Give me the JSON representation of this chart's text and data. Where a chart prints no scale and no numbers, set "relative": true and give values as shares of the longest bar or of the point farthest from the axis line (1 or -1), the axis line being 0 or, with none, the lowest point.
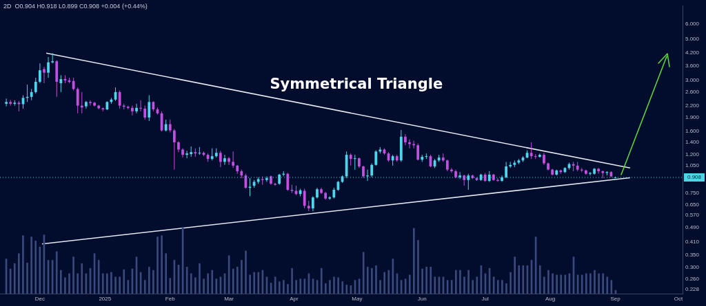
{
  "chart_data": [
    {
      "type": "candlestick",
      "subtitle": "2D  O0.904 H0.918 L0.899 C0.908 +0.004 (+0.44%)",
      "annotations": [
        "Symmetrical Triangle"
      ],
      "log": true,
      "xlim": [
        "2024-11-12",
        "2025-10-03"
      ],
      "xticks": [
        {
          "value": "2024-12-01",
          "label": "Dec"
        },
        {
          "value": "2025-01-01",
          "label": "2025"
        },
        {
          "value": "2025-02-01",
          "label": "Feb"
        },
        {
          "value": "2025-03-01",
          "label": "Mar"
        },
        {
          "value": "2025-04-01",
          "label": "Apr"
        },
        {
          "value": "2025-05-01",
          "label": "May"
        },
        {
          "value": "2025-06-01",
          "label": "Jun"
        },
        {
          "value": "2025-07-01",
          "label": "Jul"
        },
        {
          "value": "2025-08-01",
          "label": "Aug"
        },
        {
          "value": "2025-09-01",
          "label": "Sep"
        },
        {
          "value": "2025-10-01",
          "label": "Oct"
        }
      ],
      "ylim": [
        0.217,
        7.5
      ],
      "yticks": [
        {
          "value": 0.228,
          "label": "0.228"
        },
        {
          "value": 0.26,
          "label": "0.260"
        },
        {
          "value": 0.3,
          "label": "0.300"
        },
        {
          "value": 0.35,
          "label": "0.350"
        },
        {
          "value": 0.41,
          "label": "0.410"
        },
        {
          "value": 0.49,
          "label": "0.490"
        },
        {
          "value": 0.57,
          "label": "0.570"
        },
        {
          "value": 0.65,
          "label": "0.650"
        },
        {
          "value": 0.75,
          "label": "0.750"
        },
        {
          "value": 1.05,
          "label": "1.050"
        },
        {
          "value": 1.2,
          "label": "1.200"
        },
        {
          "value": 1.4,
          "label": "1.400"
        },
        {
          "value": 1.6,
          "label": "1.600"
        },
        {
          "value": 1.9,
          "label": "1.900"
        },
        {
          "value": 2.2,
          "label": "2.200"
        },
        {
          "value": 2.6,
          "label": "2.600"
        },
        {
          "value": 3,
          "label": "3.000"
        },
        {
          "value": 3.6,
          "label": "3.600"
        },
        {
          "value": 4.2,
          "label": "4.200"
        },
        {
          "value": 5,
          "label": "5.000"
        },
        {
          "value": 6,
          "label": "6.000"
        }
      ],
      "ref_lines": [
        {
          "axis": "y",
          "value": 0.908,
          "label": "0.908",
          "color": "#4fd6e6"
        }
      ],
      "x": [
        "2024-11-15",
        "2024-11-17",
        "2024-11-19",
        "2024-11-21",
        "2024-11-23",
        "2024-11-25",
        "2024-11-27",
        "2024-11-29",
        "2024-12-01",
        "2024-12-03",
        "2024-12-05",
        "2024-12-07",
        "2024-12-09",
        "2024-12-11",
        "2024-12-13",
        "2024-12-15",
        "2024-12-17",
        "2024-12-19",
        "2024-12-21",
        "2024-12-23",
        "2024-12-25",
        "2024-12-27",
        "2024-12-29",
        "2024-12-31",
        "2025-01-02",
        "2025-01-04",
        "2025-01-06",
        "2025-01-08",
        "2025-01-10",
        "2025-01-12",
        "2025-01-14",
        "2025-01-16",
        "2025-01-18",
        "2025-01-20",
        "2025-01-22",
        "2025-01-24",
        "2025-01-26",
        "2025-01-28",
        "2025-01-30",
        "2025-02-01",
        "2025-02-03",
        "2025-02-05",
        "2025-02-07",
        "2025-02-09",
        "2025-02-11",
        "2025-02-13",
        "2025-02-15",
        "2025-02-17",
        "2025-02-19",
        "2025-02-21",
        "2025-02-23",
        "2025-02-25",
        "2025-02-27",
        "2025-03-01",
        "2025-03-03",
        "2025-03-05",
        "2025-03-07",
        "2025-03-09",
        "2025-03-11",
        "2025-03-13",
        "2025-03-15",
        "2025-03-17",
        "2025-03-19",
        "2025-03-21",
        "2025-03-23",
        "2025-03-25",
        "2025-03-27",
        "2025-03-29",
        "2025-03-31",
        "2025-04-02",
        "2025-04-04",
        "2025-04-06",
        "2025-04-08",
        "2025-04-10",
        "2025-04-12",
        "2025-04-14",
        "2025-04-16",
        "2025-04-18",
        "2025-04-20",
        "2025-04-22",
        "2025-04-24",
        "2025-04-26",
        "2025-04-28",
        "2025-04-30",
        "2025-05-02",
        "2025-05-04",
        "2025-05-06",
        "2025-05-08",
        "2025-05-10",
        "2025-05-12",
        "2025-05-14",
        "2025-05-16",
        "2025-05-18",
        "2025-05-20",
        "2025-05-22",
        "2025-05-24",
        "2025-05-26",
        "2025-05-28",
        "2025-05-30",
        "2025-06-01",
        "2025-06-03",
        "2025-06-05",
        "2025-06-07",
        "2025-06-09",
        "2025-06-11",
        "2025-06-13",
        "2025-06-15",
        "2025-06-17",
        "2025-06-19",
        "2025-06-21",
        "2025-06-23",
        "2025-06-25",
        "2025-06-27",
        "2025-06-29",
        "2025-07-01",
        "2025-07-03",
        "2025-07-05",
        "2025-07-07",
        "2025-07-09",
        "2025-07-11",
        "2025-07-13",
        "2025-07-15",
        "2025-07-17",
        "2025-07-19",
        "2025-07-21",
        "2025-07-23",
        "2025-07-25",
        "2025-07-27",
        "2025-07-29",
        "2025-07-31",
        "2025-08-02",
        "2025-08-04",
        "2025-08-06",
        "2025-08-08",
        "2025-08-10",
        "2025-08-12",
        "2025-08-14",
        "2025-08-16",
        "2025-08-18",
        "2025-08-20",
        "2025-08-22",
        "2025-08-24",
        "2025-08-26",
        "2025-08-28",
        "2025-08-30",
        "2025-09-01"
      ],
      "ohlc": [
        [
          2.25,
          2.4,
          2.18,
          2.3
        ],
        [
          2.3,
          2.36,
          2.2,
          2.25
        ],
        [
          2.25,
          2.35,
          2.2,
          2.28
        ],
        [
          2.28,
          2.33,
          2.05,
          2.24
        ],
        [
          2.24,
          2.5,
          2.12,
          2.42
        ],
        [
          2.42,
          2.85,
          2.3,
          2.45
        ],
        [
          2.45,
          2.7,
          2.35,
          2.6
        ],
        [
          2.6,
          3.1,
          2.55,
          2.95
        ],
        [
          2.95,
          3.7,
          2.9,
          3.4
        ],
        [
          3.45,
          3.55,
          2.9,
          3.3
        ],
        [
          3.3,
          4.0,
          3.1,
          3.75
        ],
        [
          3.75,
          4.2,
          3.7,
          3.8
        ],
        [
          3.8,
          3.85,
          2.45,
          2.95
        ],
        [
          2.9,
          3.2,
          2.6,
          3.05
        ],
        [
          3.05,
          3.2,
          2.9,
          3.0
        ],
        [
          3.0,
          3.1,
          2.9,
          2.95
        ],
        [
          2.98,
          3.1,
          2.65,
          2.7
        ],
        [
          2.7,
          2.75,
          2.0,
          2.2
        ],
        [
          2.2,
          2.6,
          2.0,
          2.15
        ],
        [
          2.18,
          2.33,
          2.12,
          2.3
        ],
        [
          2.3,
          2.35,
          2.2,
          2.27
        ],
        [
          2.28,
          2.3,
          2.18,
          2.2
        ],
        [
          2.2,
          2.22,
          2.1,
          2.13
        ],
        [
          2.13,
          2.15,
          2.05,
          2.1
        ],
        [
          2.1,
          2.32,
          2.08,
          2.3
        ],
        [
          2.3,
          2.42,
          2.25,
          2.37
        ],
        [
          2.37,
          2.75,
          2.33,
          2.6
        ],
        [
          2.6,
          2.65,
          2.12,
          2.2
        ],
        [
          2.2,
          2.25,
          2.1,
          2.17
        ],
        [
          2.17,
          2.2,
          2.1,
          2.14
        ],
        [
          2.14,
          2.2,
          1.95,
          2.05
        ],
        [
          2.05,
          2.25,
          2.0,
          2.14
        ],
        [
          2.14,
          2.35,
          2.05,
          2.12
        ],
        [
          2.12,
          2.2,
          1.85,
          1.9
        ],
        [
          1.9,
          2.5,
          1.82,
          2.3
        ],
        [
          2.3,
          2.32,
          2.05,
          2.1
        ],
        [
          2.1,
          2.15,
          1.97,
          2.0
        ],
        [
          2.0,
          2.05,
          1.6,
          1.62
        ],
        [
          1.62,
          1.85,
          1.6,
          1.75
        ],
        [
          1.75,
          1.85,
          1.58,
          1.62
        ],
        [
          1.62,
          1.65,
          1.0,
          1.4
        ],
        [
          1.4,
          1.42,
          1.24,
          1.28
        ],
        [
          1.28,
          1.3,
          1.16,
          1.2
        ],
        [
          1.2,
          1.26,
          1.15,
          1.22
        ],
        [
          1.21,
          1.33,
          1.17,
          1.24
        ],
        [
          1.24,
          1.3,
          1.17,
          1.22
        ],
        [
          1.22,
          1.32,
          1.2,
          1.23
        ],
        [
          1.23,
          1.25,
          1.18,
          1.2
        ],
        [
          1.2,
          1.22,
          1.1,
          1.14
        ],
        [
          1.14,
          1.3,
          1.12,
          1.18
        ],
        [
          1.18,
          1.3,
          1.16,
          1.23
        ],
        [
          1.23,
          1.26,
          1.03,
          1.1
        ],
        [
          1.1,
          1.2,
          1.06,
          1.15
        ],
        [
          1.15,
          1.17,
          1.06,
          1.1
        ],
        [
          1.1,
          1.25,
          1.02,
          1.05
        ],
        [
          1.05,
          1.06,
          0.95,
          0.98
        ],
        [
          0.98,
          1.0,
          0.9,
          0.93
        ],
        [
          0.93,
          0.95,
          0.79,
          0.8
        ],
        [
          0.8,
          0.9,
          0.72,
          0.81
        ],
        [
          0.82,
          0.88,
          0.8,
          0.86
        ],
        [
          0.86,
          0.91,
          0.84,
          0.89
        ],
        [
          0.89,
          0.92,
          0.83,
          0.88
        ],
        [
          0.88,
          0.92,
          0.86,
          0.9
        ],
        [
          0.92,
          0.93,
          0.83,
          0.84
        ],
        [
          0.84,
          0.85,
          0.82,
          0.83
        ],
        [
          0.84,
          0.95,
          0.83,
          0.94
        ],
        [
          0.94,
          0.98,
          0.92,
          0.95
        ],
        [
          0.95,
          0.96,
          0.77,
          0.78
        ],
        [
          0.78,
          0.83,
          0.75,
          0.77
        ],
        [
          0.77,
          0.82,
          0.73,
          0.74
        ],
        [
          0.74,
          0.79,
          0.72,
          0.775
        ],
        [
          0.77,
          0.79,
          0.62,
          0.64
        ],
        [
          0.64,
          0.68,
          0.6,
          0.62
        ],
        [
          0.62,
          0.72,
          0.6,
          0.71
        ],
        [
          0.71,
          0.8,
          0.7,
          0.785
        ],
        [
          0.785,
          0.8,
          0.74,
          0.75
        ],
        [
          0.75,
          0.76,
          0.69,
          0.7
        ],
        [
          0.7,
          0.72,
          0.69,
          0.71
        ],
        [
          0.71,
          0.8,
          0.7,
          0.78
        ],
        [
          0.78,
          0.87,
          0.77,
          0.86
        ],
        [
          0.86,
          0.93,
          0.85,
          0.92
        ],
        [
          0.92,
          1.25,
          0.9,
          1.2
        ],
        [
          1.2,
          1.22,
          1.05,
          1.14
        ],
        [
          1.14,
          1.2,
          1.0,
          1.15
        ],
        [
          1.15,
          1.16,
          1.02,
          1.04
        ],
        [
          1.04,
          1.05,
          0.9,
          0.92
        ],
        [
          0.92,
          1.0,
          0.87,
          0.93
        ],
        [
          0.93,
          1.08,
          0.91,
          1.06
        ],
        [
          1.06,
          1.27,
          1.05,
          1.25
        ],
        [
          1.25,
          1.32,
          1.22,
          1.28
        ],
        [
          1.28,
          1.3,
          1.2,
          1.22
        ],
        [
          1.22,
          1.24,
          1.1,
          1.12
        ],
        [
          1.12,
          1.2,
          1.05,
          1.18
        ],
        [
          1.18,
          1.2,
          1.1,
          1.12
        ],
        [
          1.12,
          1.63,
          1.1,
          1.5
        ],
        [
          1.5,
          1.55,
          1.35,
          1.4
        ],
        [
          1.4,
          1.45,
          1.3,
          1.37
        ],
        [
          1.37,
          1.43,
          1.3,
          1.35
        ],
        [
          1.35,
          1.38,
          1.12,
          1.13
        ],
        [
          1.13,
          1.2,
          1.1,
          1.17
        ],
        [
          1.17,
          1.22,
          1.14,
          1.18
        ],
        [
          1.18,
          1.2,
          1.03,
          1.04
        ],
        [
          1.04,
          1.14,
          1.02,
          1.12
        ],
        [
          1.12,
          1.2,
          1.1,
          1.16
        ],
        [
          1.16,
          1.22,
          1.1,
          1.12
        ],
        [
          1.12,
          1.13,
          0.98,
          1.0
        ],
        [
          1.0,
          1.02,
          0.96,
          0.98
        ],
        [
          0.98,
          1.0,
          0.9,
          0.91
        ],
        [
          0.91,
          0.97,
          0.89,
          0.93
        ],
        [
          0.93,
          0.94,
          0.82,
          0.88
        ],
        [
          0.88,
          0.95,
          0.78,
          0.93
        ],
        [
          0.93,
          0.94,
          0.89,
          0.9
        ],
        [
          0.9,
          0.91,
          0.87,
          0.88
        ],
        [
          0.88,
          0.95,
          0.87,
          0.94
        ],
        [
          0.94,
          0.96,
          0.86,
          0.87
        ],
        [
          0.87,
          0.98,
          0.86,
          0.94
        ],
        [
          0.94,
          0.95,
          0.87,
          0.88
        ],
        [
          0.88,
          0.9,
          0.86,
          0.87
        ],
        [
          0.87,
          0.93,
          0.86,
          0.91
        ],
        [
          0.91,
          1.1,
          0.9,
          1.04
        ],
        [
          1.04,
          1.1,
          1.02,
          1.06
        ],
        [
          1.06,
          1.12,
          1.03,
          1.09
        ],
        [
          1.09,
          1.14,
          1.07,
          1.12
        ],
        [
          1.12,
          1.18,
          1.1,
          1.16
        ],
        [
          1.16,
          1.27,
          1.15,
          1.23
        ],
        [
          1.23,
          1.4,
          1.14,
          1.18
        ],
        [
          1.18,
          1.21,
          1.14,
          1.17
        ],
        [
          1.17,
          1.22,
          1.16,
          1.2
        ],
        [
          1.2,
          1.23,
          1.06,
          1.08
        ],
        [
          1.08,
          1.09,
          0.99,
          1.0
        ],
        [
          1.0,
          1.01,
          0.93,
          0.94
        ],
        [
          0.94,
          1.0,
          0.93,
          0.99
        ],
        [
          0.99,
          1.0,
          0.95,
          0.97
        ],
        [
          0.97,
          1.03,
          0.96,
          1.02
        ],
        [
          1.02,
          1.09,
          1.0,
          1.07
        ],
        [
          1.07,
          1.1,
          0.98,
          1.05
        ],
        [
          1.05,
          1.1,
          0.98,
          1.0
        ],
        [
          1.0,
          1.02,
          0.97,
          0.99
        ],
        [
          0.99,
          1.0,
          0.94,
          0.95
        ],
        [
          0.95,
          0.97,
          0.93,
          0.96
        ],
        [
          0.95,
          1.02,
          0.94,
          1.01
        ],
        [
          1.01,
          1.02,
          0.95,
          0.98
        ],
        [
          0.98,
          0.99,
          0.9,
          0.96
        ],
        [
          0.96,
          0.98,
          0.93,
          0.97
        ],
        [
          0.97,
          0.98,
          0.91,
          0.92
        ],
        [
          0.904,
          0.918,
          0.899,
          0.908
        ]
      ],
      "series": [
        {
          "type": "line",
          "color": "#e6e8f0",
          "x": [
            "2024-12-04",
            "2025-09-08"
          ],
          "values": [
            4.2,
            1.02
          ]
        },
        {
          "type": "line",
          "color": "#e6e8f0",
          "x": [
            "2024-12-02",
            "2025-09-08"
          ],
          "values": [
            0.4,
            0.905
          ]
        }
      ]
    },
    {
      "type": "bar",
      "relative": true,
      "tick_labels": false,
      "color": "#3b4a7e",
      "categories": [
        null,
        null,
        null,
        null,
        null,
        null,
        null,
        null,
        null,
        null,
        null,
        null,
        null,
        null,
        null,
        null,
        null,
        null,
        null,
        null,
        null,
        null,
        null,
        null,
        null,
        null,
        null,
        null,
        null,
        null,
        null,
        null,
        null,
        null,
        null,
        null,
        null,
        null,
        null,
        null,
        null,
        null,
        null,
        null,
        null,
        null,
        null,
        null,
        null,
        null,
        null,
        null,
        null,
        null,
        null,
        null,
        null,
        null,
        null,
        null,
        null,
        null,
        null,
        null,
        null,
        null,
        null,
        null,
        null,
        null,
        null,
        null,
        null,
        null,
        null,
        null,
        null,
        null,
        null,
        null,
        null,
        null,
        null,
        null,
        null,
        null,
        null,
        null,
        null,
        null,
        null,
        null,
        null,
        null,
        null,
        null,
        null,
        null,
        null,
        null,
        null,
        null,
        null,
        null,
        null,
        null,
        null,
        null,
        null,
        null,
        null,
        null,
        null,
        null,
        null,
        null,
        null,
        null,
        null,
        null,
        null,
        null,
        null,
        null,
        null,
        null,
        null,
        null,
        null,
        null,
        null,
        null,
        null,
        null,
        null,
        null,
        null,
        null,
        null,
        null,
        null,
        null,
        null,
        null,
        null,
        null
      ],
      "values": [
        0.52,
        0.37,
        0.45,
        0.6,
        0.87,
        0.46,
        0.85,
        0.79,
        0.7,
        0.88,
        0.5,
        0.5,
        0.63,
        0.35,
        0.24,
        0.3,
        0.55,
        0.3,
        0.45,
        0.3,
        0.38,
        0.6,
        0.5,
        0.3,
        0.3,
        0.32,
        0.25,
        0.25,
        0.36,
        0.2,
        0.37,
        0.55,
        0.32,
        0.2,
        0.4,
        0.35,
        0.85,
        0.87,
        0.6,
        0.23,
        0.5,
        0.43,
        1.0,
        0.4,
        0.3,
        0.24,
        0.45,
        0.22,
        0.3,
        0.35,
        0.22,
        0.25,
        0.3,
        0.57,
        0.37,
        0.4,
        0.5,
        0.64,
        0.28,
        0.32,
        0.32,
        0.35,
        0.25,
        0.16,
        0.25,
        0.18,
        0.2,
        0.14,
        0.38,
        0.2,
        0.22,
        0.22,
        0.3,
        0.22,
        0.2,
        0.38,
        0.15,
        0.2,
        0.25,
        0.24,
        0.18,
        0.13,
        0.12,
        0.2,
        0.22,
        0.62,
        0.4,
        0.38,
        0.42,
        0.2,
        0.32,
        0.35,
        0.52,
        0.3,
        0.2,
        0.22,
        0.28,
        0.98,
        0.8,
        0.37,
        0.4,
        0.4,
        0.25,
        0.25,
        0.25,
        0.2,
        0.2,
        0.35,
        0.35,
        0.25,
        0.35,
        0.2,
        0.25,
        0.42,
        0.3,
        0.38,
        0.25,
        0.2,
        0.2,
        0.15,
        0.32,
        0.55,
        0.42,
        0.42,
        0.42,
        0.5,
        0.85,
        0.42,
        0.25,
        0.35,
        0.3,
        0.28,
        0.28,
        0.28,
        0.3,
        0.55,
        0.28,
        0.28,
        0.3,
        0.3,
        0.35,
        0.3,
        0.3,
        0.25,
        0.2,
        0.05
      ]
    }
  ]
}
